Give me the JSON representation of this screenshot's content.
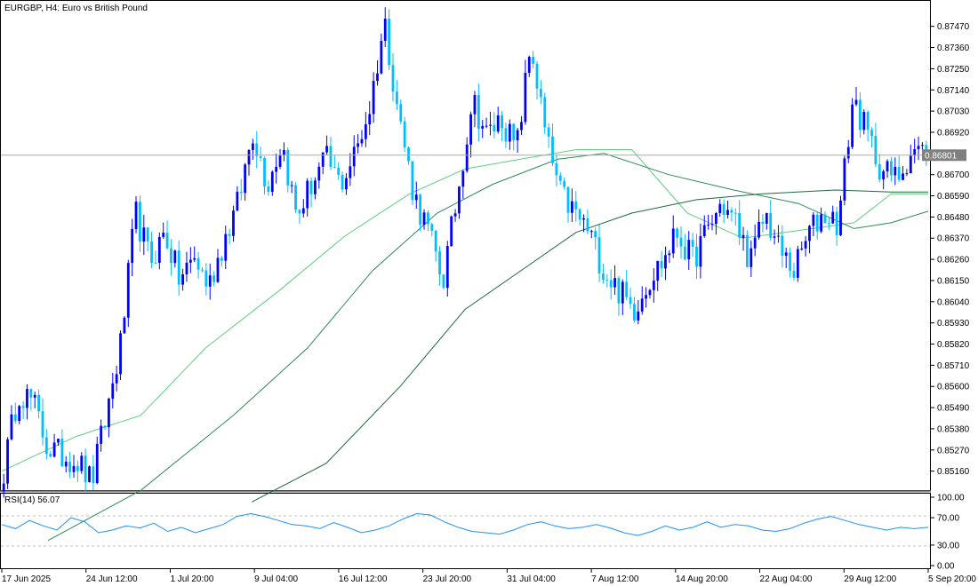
{
  "header": {
    "symbol_line": "EURGBP, H4:  Euro vs British Pound"
  },
  "rsi_panel": {
    "label": "RSI(14) 56.07"
  },
  "colors": {
    "bull": "#0000ff",
    "bear": "#00bfff",
    "ma_fast": "#5fcf7f",
    "ma_mid": "#2e8b57",
    "ma_slow": "#1a6b3a",
    "rsi_line": "#1e90ff",
    "price_line": "#a9a9a9",
    "frame": "#000000"
  },
  "chart_data": [
    {
      "type": "candlestick",
      "title": "EURGBP, H4:  Euro vs British Pound",
      "current_price": 0.86801,
      "current_price_label": "0.86801",
      "ylim": [
        0.8508,
        0.8757
      ],
      "y_ticks": [
        "0.87470",
        "0.87360",
        "0.87250",
        "0.87140",
        "0.87030",
        "0.86920",
        "0.86700",
        "0.86590",
        "0.86480",
        "0.86370",
        "0.86260",
        "0.86150",
        "0.86040",
        "0.85930",
        "0.85820",
        "0.85710",
        "0.85600",
        "0.85490",
        "0.85380",
        "0.85270",
        "0.85160"
      ],
      "x_ticks": [
        "17 Jun 2025",
        "24 Jun 12:00",
        "1 Jul 20:00",
        "9 Jul 04:00",
        "16 Jul 12:00",
        "23 Jul 20:00",
        "31 Jul 04:00",
        "7 Aug 12:00",
        "14 Aug 20:00",
        "22 Aug 04:00",
        "29 Aug 12:00",
        "5 Sep 20:00"
      ],
      "price_path": [
        0.8516,
        0.8558,
        0.8552,
        0.8528,
        0.8524,
        0.8522,
        0.851,
        0.8545,
        0.8582,
        0.865,
        0.8625,
        0.864,
        0.8615,
        0.8627,
        0.8612,
        0.8635,
        0.8655,
        0.8693,
        0.8665,
        0.8687,
        0.8648,
        0.8665,
        0.8678,
        0.8665,
        0.8681,
        0.8705,
        0.875,
        0.87,
        0.866,
        0.864,
        0.8615,
        0.866,
        0.871,
        0.869,
        0.87,
        0.8682,
        0.8738,
        0.869,
        0.866,
        0.865,
        0.864,
        0.862,
        0.861,
        0.86,
        0.8615,
        0.8625,
        0.864,
        0.8625,
        0.864,
        0.8655,
        0.8645,
        0.8625,
        0.865,
        0.863,
        0.862,
        0.864,
        0.865,
        0.8645,
        0.871,
        0.869,
        0.8672,
        0.8668,
        0.8683,
        0.8681
      ],
      "moving_averages": [
        {
          "points": [
            [
              0,
              0.8516
            ],
            [
              0.08,
              0.8534
            ],
            [
              0.15,
              0.8545
            ],
            [
              0.22,
              0.858
            ],
            [
              0.3,
              0.861
            ],
            [
              0.37,
              0.8638
            ],
            [
              0.44,
              0.866
            ],
            [
              0.5,
              0.8673
            ],
            [
              0.56,
              0.8678
            ],
            [
              0.62,
              0.8683
            ],
            [
              0.68,
              0.8683
            ],
            [
              0.74,
              0.865
            ],
            [
              0.8,
              0.8637
            ],
            [
              0.86,
              0.8641
            ],
            [
              0.92,
              0.8645
            ],
            [
              0.96,
              0.866
            ],
            [
              1.0,
              0.866
            ]
          ]
        },
        {
          "points": [
            [
              0.05,
              0.848
            ],
            [
              0.15,
              0.8506
            ],
            [
              0.25,
              0.8545
            ],
            [
              0.33,
              0.858
            ],
            [
              0.4,
              0.862
            ],
            [
              0.47,
              0.865
            ],
            [
              0.53,
              0.8665
            ],
            [
              0.6,
              0.8678
            ],
            [
              0.65,
              0.8681
            ],
            [
              0.72,
              0.867
            ],
            [
              0.79,
              0.8662
            ],
            [
              0.86,
              0.8655
            ],
            [
              0.92,
              0.8642
            ],
            [
              0.96,
              0.8645
            ],
            [
              1.0,
              0.8651
            ]
          ]
        },
        {
          "points": [
            [
              0.27,
              0.85
            ],
            [
              0.35,
              0.852
            ],
            [
              0.43,
              0.856
            ],
            [
              0.5,
              0.86
            ],
            [
              0.56,
              0.862
            ],
            [
              0.62,
              0.864
            ],
            [
              0.68,
              0.865
            ],
            [
              0.75,
              0.8657
            ],
            [
              0.82,
              0.866
            ],
            [
              0.9,
              0.8662
            ],
            [
              0.96,
              0.8661
            ],
            [
              1.0,
              0.8661
            ]
          ]
        }
      ]
    },
    {
      "type": "line",
      "title": "RSI(14) 56.07",
      "ylim": [
        0,
        100
      ],
      "y_ticks": [
        "100.00",
        "70.00",
        "30.00",
        "0.00"
      ],
      "levels": [
        70,
        30
      ],
      "last_value": 56.07,
      "values": [
        60,
        54,
        66,
        58,
        52,
        70,
        64,
        48,
        52,
        58,
        55,
        62,
        50,
        56,
        48,
        54,
        60,
        72,
        76,
        72,
        66,
        60,
        58,
        54,
        63,
        56,
        48,
        52,
        58,
        68,
        76,
        74,
        64,
        56,
        50,
        48,
        46,
        52,
        60,
        64,
        58,
        54,
        56,
        60,
        55,
        48,
        44,
        50,
        58,
        52,
        56,
        64,
        56,
        60,
        58,
        52,
        50,
        54,
        62,
        68,
        72,
        66,
        60,
        56,
        52,
        56,
        54,
        56
      ]
    }
  ]
}
